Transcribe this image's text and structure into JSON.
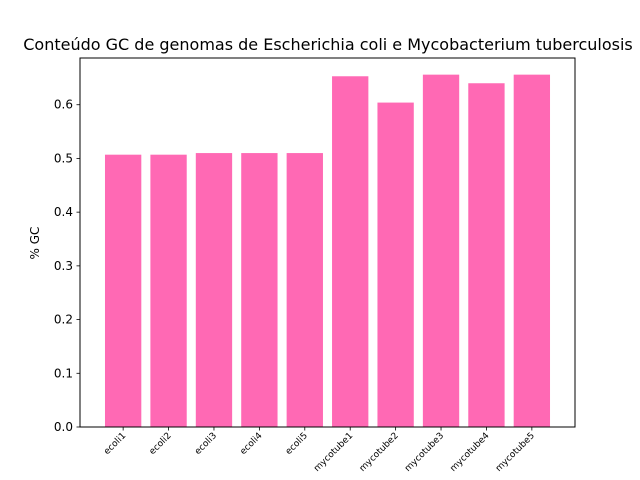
{
  "chart_data": {
    "type": "bar",
    "title": "Conteúdo GC de genomas de Escherichia coli e Mycobacterium tuberculosis",
    "xlabel": "",
    "ylabel": "% GC",
    "categories": [
      "ecoli1",
      "ecoli2",
      "ecoli3",
      "ecoli4",
      "ecoli5",
      "mycotube1",
      "mycotube2",
      "mycotube3",
      "mycotube4",
      "mycotube5"
    ],
    "values": [
      0.507,
      0.507,
      0.51,
      0.51,
      0.51,
      0.653,
      0.604,
      0.656,
      0.64,
      0.656
    ],
    "ylim": [
      0,
      0.687
    ],
    "yticks": [
      0.0,
      0.1,
      0.2,
      0.3,
      0.4,
      0.5,
      0.6
    ],
    "ytick_labels": [
      "0.0",
      "0.1",
      "0.2",
      "0.3",
      "0.4",
      "0.5",
      "0.6"
    ],
    "bar_color": "#ff69b4",
    "grid": false,
    "legend": "none"
  }
}
